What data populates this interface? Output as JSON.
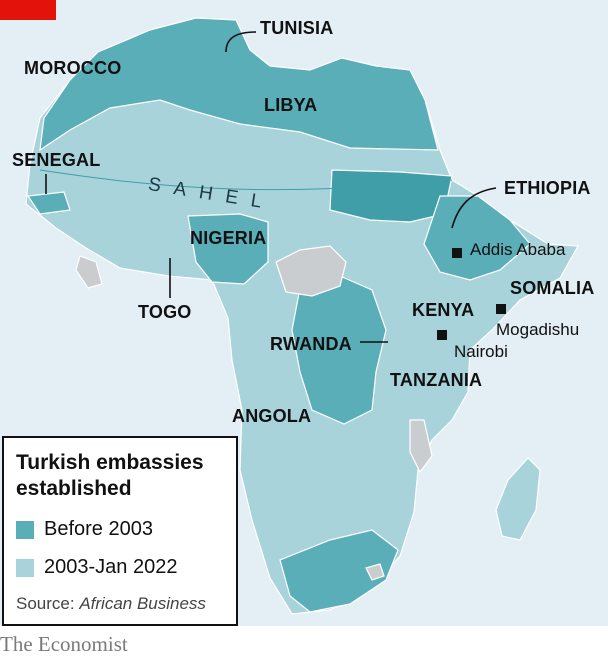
{
  "labels": {
    "tunisia": "TUNISIA",
    "morocco": "MOROCCO",
    "libya": "LIBYA",
    "senegal": "SENEGAL",
    "sahel": "SAHEL",
    "ethiopia": "ETHIOPIA",
    "nigeria": "NIGERIA",
    "togo": "TOGO",
    "somalia": "SOMALIA",
    "kenya": "KENYA",
    "rwanda": "RWANDA",
    "tanzania": "TANZANIA",
    "angola": "ANGOLA"
  },
  "cities": {
    "addis_ababa": "Addis Ababa",
    "mogadishu": "Mogadishu",
    "nairobi": "Nairobi"
  },
  "legend": {
    "title": "Turkish embassies established",
    "items": [
      {
        "label": "Before 2003",
        "color": "#5aaeb8"
      },
      {
        "label": "2003-Jan 2022",
        "color": "#a8d3db"
      }
    ],
    "source_prefix": "Source: ",
    "source_name": "African Business"
  },
  "colors": {
    "before_2003": "#5aaeb8",
    "after_2003": "#a8d3db",
    "no_embassy": "#c9cdd0",
    "sahel_band": "#3f9ea8",
    "sea": "#e3eef5",
    "brand_red": "#e3120b"
  },
  "footer": "The Economist"
}
